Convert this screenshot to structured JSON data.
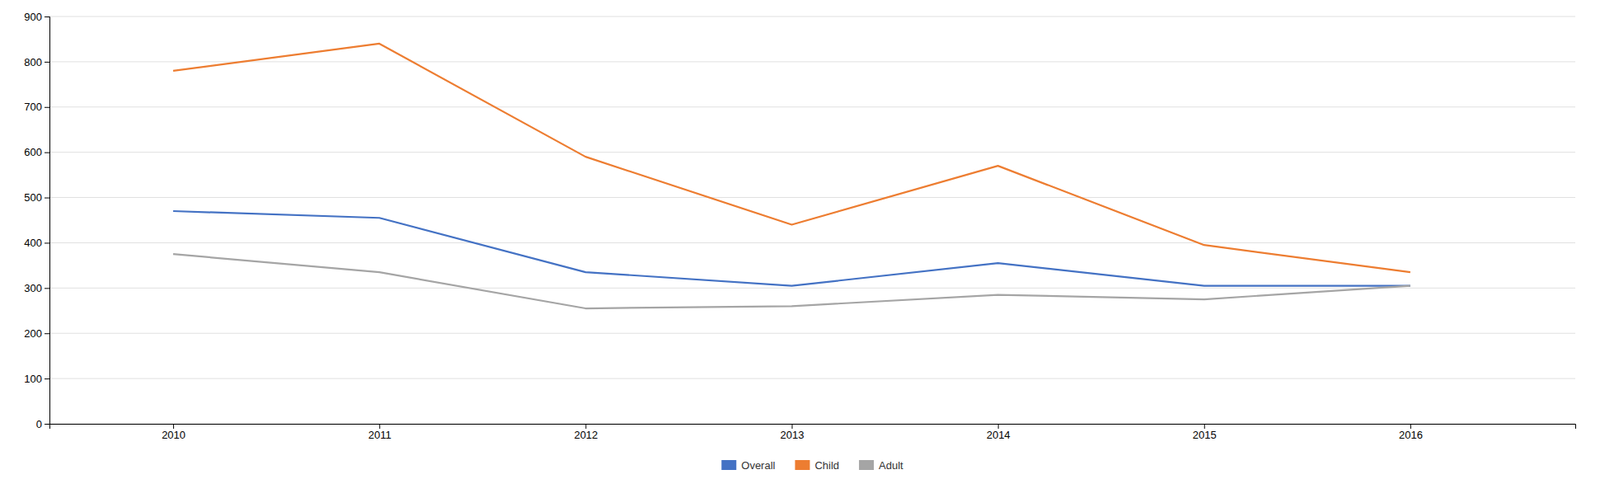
{
  "chart_data": {
    "type": "line",
    "x": [
      2010,
      2011,
      2012,
      2013,
      2014,
      2015,
      2016
    ],
    "xlim": [
      2009.4,
      2016.8
    ],
    "xticks": [
      2010,
      2011,
      2012,
      2013,
      2014,
      2015,
      2016
    ],
    "ylim": [
      0,
      900
    ],
    "yticks": [
      0,
      100,
      200,
      300,
      400,
      500,
      600,
      700,
      800,
      900
    ],
    "grid": true,
    "legend": "bottom",
    "series": [
      {
        "name": "Overall",
        "color": "#4472C4",
        "values": [
          470,
          455,
          335,
          305,
          355,
          305,
          305
        ]
      },
      {
        "name": "Child",
        "color": "#ED7D31",
        "values": [
          780,
          840,
          590,
          440,
          570,
          395,
          335
        ]
      },
      {
        "name": "Adult",
        "color": "#A5A5A5",
        "values": [
          375,
          335,
          255,
          260,
          285,
          275,
          305
        ]
      }
    ]
  }
}
